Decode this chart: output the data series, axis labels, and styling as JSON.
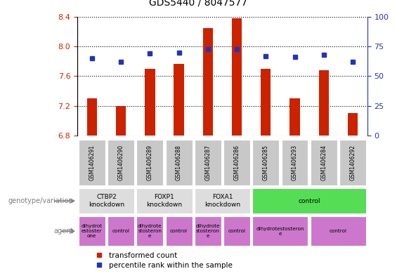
{
  "title": "GDS5440 / 8047577",
  "samples": [
    "GSM1406291",
    "GSM1406290",
    "GSM1406289",
    "GSM1406288",
    "GSM1406287",
    "GSM1406286",
    "GSM1406285",
    "GSM1406293",
    "GSM1406284",
    "GSM1406292"
  ],
  "red_values": [
    7.3,
    7.2,
    7.7,
    7.77,
    8.25,
    8.38,
    7.7,
    7.3,
    7.68,
    7.1
  ],
  "blue_values": [
    65,
    62,
    69,
    70,
    73,
    73,
    67,
    66,
    68,
    62
  ],
  "ylim_left": [
    6.8,
    8.4
  ],
  "ylim_right": [
    0,
    100
  ],
  "yticks_left": [
    6.8,
    7.2,
    7.6,
    8.0,
    8.4
  ],
  "yticks_right": [
    0,
    25,
    50,
    75,
    100
  ],
  "bar_color": "#cc2200",
  "dot_color": "#2233bb",
  "plot_bg": "#ffffff",
  "genotype_groups": [
    {
      "label": "CTBP2\nknockdown",
      "start": 0,
      "end": 2,
      "color": "#dddddd"
    },
    {
      "label": "FOXP1\nknockdown",
      "start": 2,
      "end": 4,
      "color": "#dddddd"
    },
    {
      "label": "FOXA1\nknockdown",
      "start": 4,
      "end": 6,
      "color": "#dddddd"
    },
    {
      "label": "control",
      "start": 6,
      "end": 10,
      "color": "#55dd55"
    }
  ],
  "agent_groups": [
    {
      "label": "dihydrot\nestoster\none",
      "start": 0,
      "end": 1
    },
    {
      "label": "control",
      "start": 1,
      "end": 2
    },
    {
      "label": "dihydrote\nstosteron\ne",
      "start": 2,
      "end": 3
    },
    {
      "label": "control",
      "start": 3,
      "end": 4
    },
    {
      "label": "dihydrote\nstosteron\ne",
      "start": 4,
      "end": 5
    },
    {
      "label": "control",
      "start": 5,
      "end": 6
    },
    {
      "label": "dihydrotestosteron\ne",
      "start": 6,
      "end": 8
    },
    {
      "label": "control",
      "start": 8,
      "end": 10
    }
  ],
  "agent_color": "#cc77cc",
  "left_label_color": "#cc2200",
  "right_label_color": "#2233bb",
  "legend_red_label": "transformed count",
  "legend_blue_label": "percentile rank within the sample",
  "genotype_arrow_label": "genotype/variation",
  "agent_arrow_label": "agent"
}
